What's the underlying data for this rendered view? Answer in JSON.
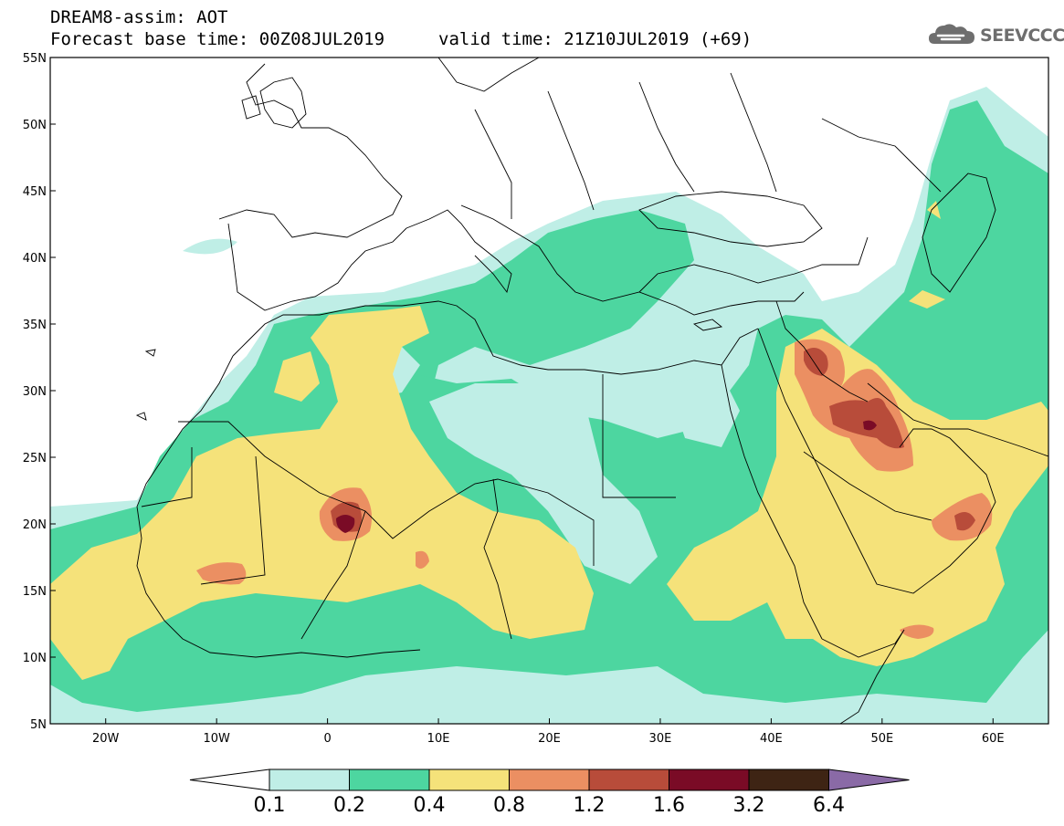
{
  "header": {
    "title": "DREAM8-assim: AOT",
    "base_time": "Forecast base time: 00Z08JUL2019",
    "valid_time": "valid time: 21Z10JUL2019 (+69)"
  },
  "logo": {
    "text": "SEEVCCC",
    "icon": "cloud-icon"
  },
  "map": {
    "lon_range": [
      -25,
      65
    ],
    "lat_range": [
      5,
      55
    ],
    "lat_ticks": [
      "5N",
      "10N",
      "15N",
      "20N",
      "25N",
      "30N",
      "35N",
      "40N",
      "45N",
      "50N",
      "55N"
    ],
    "lon_ticks": [
      "20W",
      "10W",
      "0",
      "10E",
      "20E",
      "30E",
      "40E",
      "50E",
      "60E"
    ]
  },
  "colorbar": {
    "labels": [
      "0.1",
      "0.2",
      "0.4",
      "0.8",
      "1.2",
      "1.6",
      "3.2",
      "6.4"
    ],
    "colors": [
      "#ffffff",
      "#bfeee6",
      "#4dd6a0",
      "#f5e27a",
      "#eb8f62",
      "#b84c3a",
      "#7a0b26",
      "#3e2414",
      "#8a6aa6"
    ]
  }
}
